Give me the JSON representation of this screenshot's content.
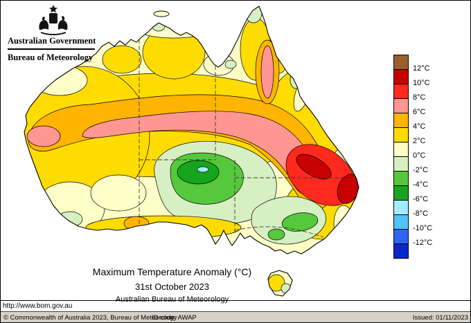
{
  "header": {
    "crest_icon": "australian-coat-of-arms",
    "government": "Australian Government",
    "bureau": "Bureau of Meteorology"
  },
  "caption": {
    "title": "Maximum Temperature Anomaly (°C)",
    "date": "31st October 2023",
    "org": "Australian Bureau of Meteorology"
  },
  "source_url": "http://www.bom.gov.au",
  "legend": {
    "labels": [
      "12°C",
      "10°C",
      "8°C",
      "6°C",
      "4°C",
      "2°C",
      "0°C",
      "-2°C",
      "-4°C",
      "-6°C",
      "-8°C",
      "-10°C",
      "-12°C"
    ],
    "colors": [
      "#9B5F2B",
      "#C80000",
      "#FF291E",
      "#FF9691",
      "#FFB400",
      "#FFDC00",
      "#FFFFC8",
      "#D7F0C3",
      "#55C83C",
      "#16A51C",
      "#A5EBFF",
      "#50C3FF",
      "#2E64F5",
      "#0A28C8"
    ]
  },
  "footer": {
    "copyright": "© Commonwealth of Australia 2023, Bureau of Meteorology",
    "id_code": "ID code: AWAP",
    "issued": "Issued: 01/11/2023"
  }
}
